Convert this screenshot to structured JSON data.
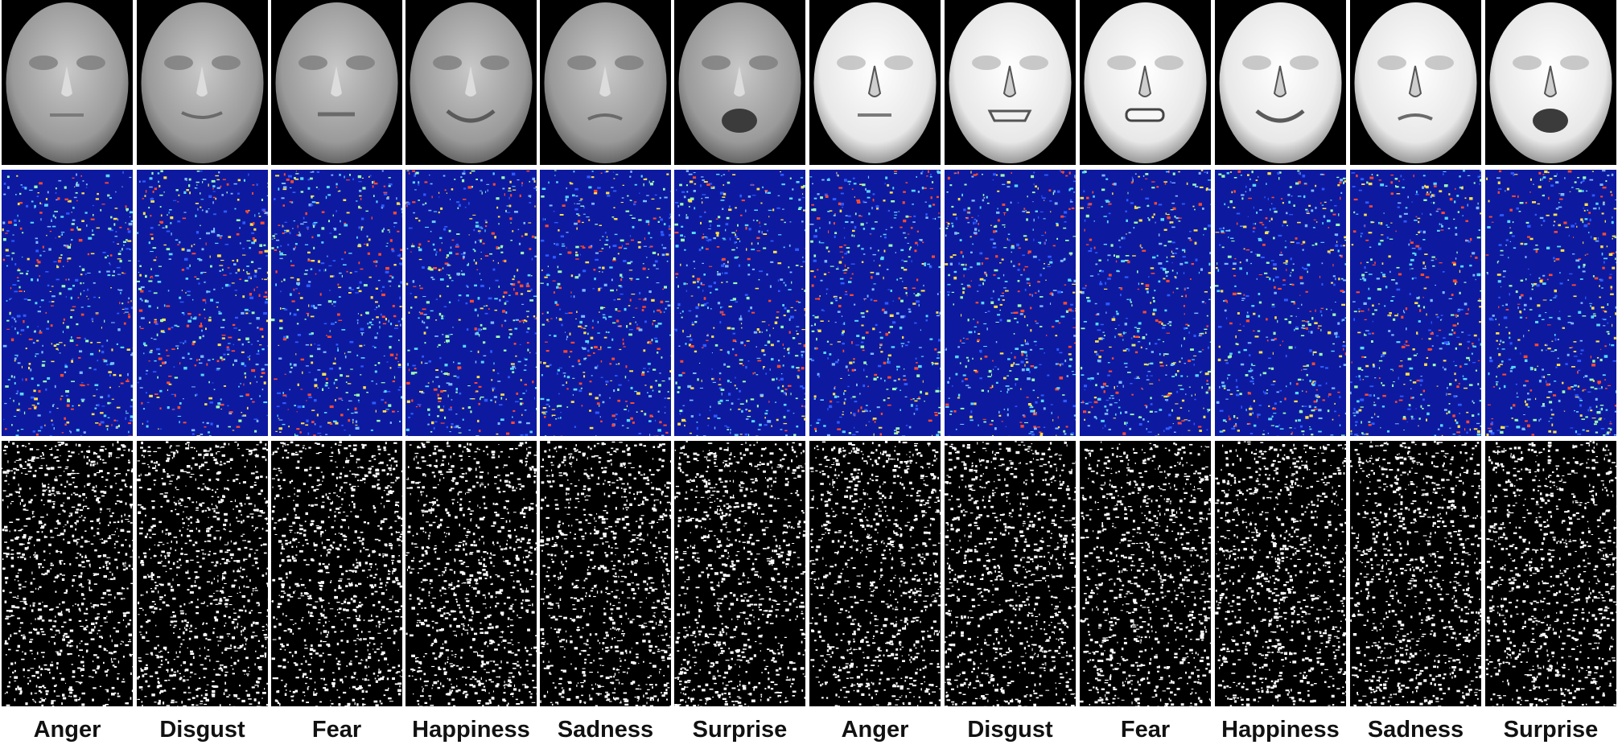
{
  "figure": {
    "rows": [
      "face",
      "coefficient-map",
      "binary-map"
    ],
    "columns": [
      {
        "label": "Anger",
        "style": "texture",
        "expression": "neutral"
      },
      {
        "label": "Disgust",
        "style": "texture",
        "expression": "smile-slight"
      },
      {
        "label": "Fear",
        "style": "texture",
        "expression": "tense"
      },
      {
        "label": "Happiness",
        "style": "texture",
        "expression": "smile"
      },
      {
        "label": "Sadness",
        "style": "texture",
        "expression": "frown"
      },
      {
        "label": "Surprise",
        "style": "texture",
        "expression": "open"
      },
      {
        "label": "Anger",
        "style": "depth",
        "expression": "neutral"
      },
      {
        "label": "Disgust",
        "style": "depth",
        "expression": "grimace"
      },
      {
        "label": "Fear",
        "style": "depth",
        "expression": "teeth"
      },
      {
        "label": "Happiness",
        "style": "depth",
        "expression": "smile"
      },
      {
        "label": "Sadness",
        "style": "depth",
        "expression": "frown"
      },
      {
        "label": "Surprise",
        "style": "depth",
        "expression": "open"
      }
    ],
    "colors": {
      "coef_bg": "#0d1aa0",
      "coef_dots": [
        "#2f5bff",
        "#5ad6ff",
        "#9dffb0",
        "#ffe04a",
        "#ff4a2f",
        "#7fb8ff"
      ],
      "texture_face": "#9a9a9a",
      "depth_face": "#e8e8e8"
    }
  }
}
